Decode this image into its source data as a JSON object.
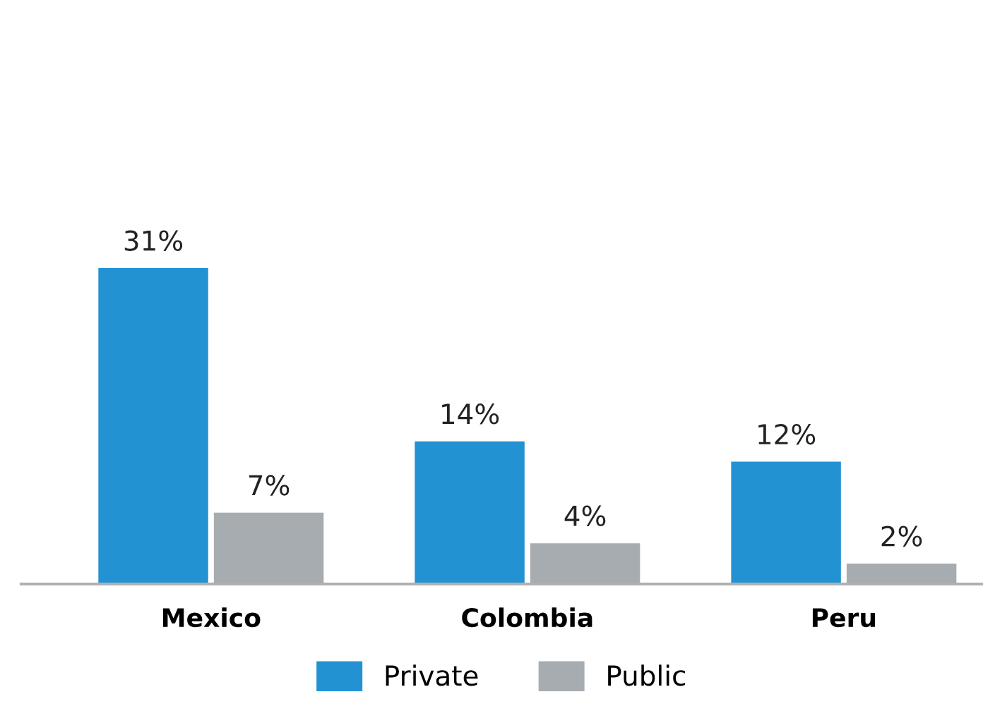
{
  "chart_data": {
    "type": "bar",
    "categories": [
      "Mexico",
      "Colombia",
      "Peru"
    ],
    "series": [
      {
        "name": "Private",
        "color": "#2392d2",
        "values": [
          31,
          14,
          12
        ],
        "value_labels": [
          "31%",
          "14%",
          "12%"
        ]
      },
      {
        "name": "Public",
        "color": "#a7acb0",
        "values": [
          7,
          4,
          2
        ],
        "value_labels": [
          "7%",
          "4%",
          "2%"
        ]
      }
    ],
    "legend": "bottom"
  }
}
